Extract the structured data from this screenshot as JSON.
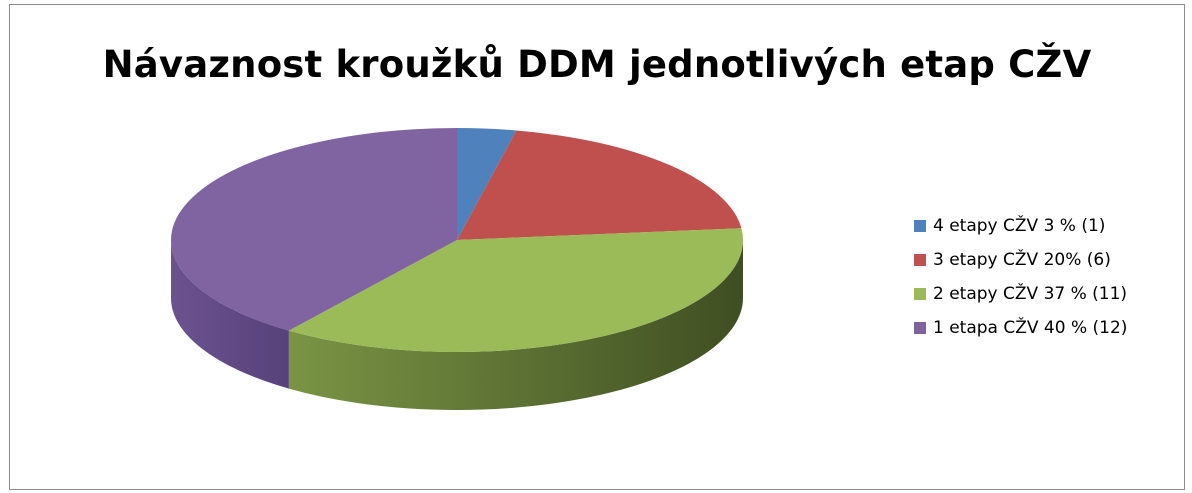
{
  "chart_data": {
    "type": "pie",
    "title": "Návaznost kroužků DDM jednotlivých etap CŽV",
    "categories": [
      "4 etapy CŽV 3 % (1)",
      "3 etapy CŽV 20% (6)",
      "2 etapy CŽV 37 % (11)",
      "1 etapa CŽV 40 % (12)"
    ],
    "values": [
      1,
      6,
      11,
      12
    ],
    "colors": [
      "#4f81bd",
      "#c0504d",
      "#9bbb59",
      "#8064a2"
    ],
    "legend_position": "right",
    "style": "3d"
  }
}
